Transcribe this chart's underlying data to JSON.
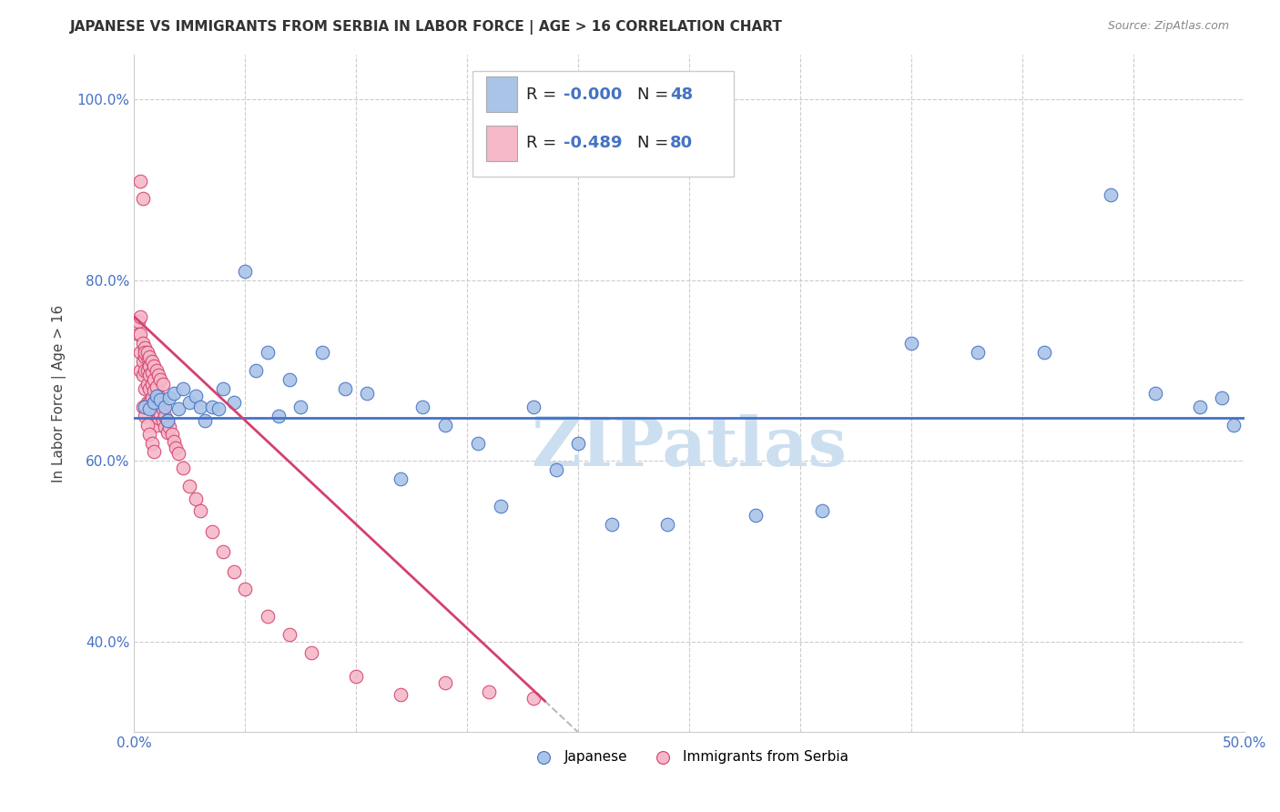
{
  "title": "JAPANESE VS IMMIGRANTS FROM SERBIA IN LABOR FORCE | AGE > 16 CORRELATION CHART",
  "source": "Source: ZipAtlas.com",
  "ylabel": "In Labor Force | Age > 16",
  "xlim": [
    0.0,
    0.5
  ],
  "ylim": [
    0.3,
    1.05
  ],
  "xticks": [
    0.0,
    0.05,
    0.1,
    0.15,
    0.2,
    0.25,
    0.3,
    0.35,
    0.4,
    0.45,
    0.5
  ],
  "xticklabels": [
    "0.0%",
    "",
    "",
    "",
    "",
    "",
    "",
    "",
    "",
    "",
    "50.0%"
  ],
  "yticks": [
    0.4,
    0.6,
    0.8,
    1.0
  ],
  "yticklabels": [
    "40.0%",
    "60.0%",
    "80.0%",
    "100.0%"
  ],
  "color_blue": "#aac4e8",
  "color_pink": "#f5b8c8",
  "color_blue_dark": "#4472c4",
  "color_pink_dark": "#d44070",
  "color_dashed": "#bbbbbb",
  "watermark": "ZIPatlas",
  "watermark_color": "#ccdff0",
  "jp_line_y": 0.648,
  "sr_line_intercept": 0.76,
  "sr_line_slope": -2.3,
  "sr_line_solid_end": 0.185,
  "japanese_x": [
    0.005,
    0.007,
    0.009,
    0.01,
    0.012,
    0.014,
    0.015,
    0.016,
    0.018,
    0.02,
    0.022,
    0.025,
    0.028,
    0.03,
    0.032,
    0.035,
    0.038,
    0.04,
    0.045,
    0.05,
    0.055,
    0.06,
    0.065,
    0.07,
    0.075,
    0.085,
    0.095,
    0.105,
    0.12,
    0.13,
    0.14,
    0.155,
    0.165,
    0.18,
    0.19,
    0.2,
    0.215,
    0.24,
    0.28,
    0.31,
    0.35,
    0.38,
    0.41,
    0.44,
    0.46,
    0.48,
    0.49,
    0.495
  ],
  "japanese_y": [
    0.66,
    0.658,
    0.665,
    0.672,
    0.668,
    0.66,
    0.645,
    0.67,
    0.675,
    0.658,
    0.68,
    0.665,
    0.672,
    0.66,
    0.645,
    0.66,
    0.658,
    0.68,
    0.665,
    0.81,
    0.7,
    0.72,
    0.65,
    0.69,
    0.66,
    0.72,
    0.68,
    0.675,
    0.58,
    0.66,
    0.64,
    0.62,
    0.55,
    0.66,
    0.59,
    0.62,
    0.53,
    0.53,
    0.54,
    0.545,
    0.73,
    0.72,
    0.72,
    0.895,
    0.675,
    0.66,
    0.67,
    0.64
  ],
  "serbia_x": [
    0.002,
    0.002,
    0.003,
    0.003,
    0.003,
    0.003,
    0.004,
    0.004,
    0.004,
    0.005,
    0.005,
    0.005,
    0.005,
    0.006,
    0.006,
    0.006,
    0.006,
    0.007,
    0.007,
    0.007,
    0.007,
    0.008,
    0.008,
    0.008,
    0.009,
    0.009,
    0.009,
    0.01,
    0.01,
    0.01,
    0.01,
    0.011,
    0.011,
    0.011,
    0.012,
    0.012,
    0.013,
    0.013,
    0.014,
    0.014,
    0.015,
    0.015,
    0.016,
    0.017,
    0.018,
    0.019,
    0.02,
    0.022,
    0.025,
    0.028,
    0.03,
    0.035,
    0.04,
    0.045,
    0.05,
    0.06,
    0.07,
    0.08,
    0.1,
    0.12,
    0.14,
    0.16,
    0.18,
    0.003,
    0.004,
    0.005,
    0.006,
    0.007,
    0.008,
    0.009,
    0.01,
    0.011,
    0.012,
    0.013,
    0.004,
    0.005,
    0.006,
    0.007,
    0.008,
    0.009
  ],
  "serbia_y": [
    0.755,
    0.74,
    0.76,
    0.74,
    0.72,
    0.7,
    0.73,
    0.71,
    0.695,
    0.725,
    0.715,
    0.7,
    0.68,
    0.715,
    0.7,
    0.685,
    0.665,
    0.705,
    0.695,
    0.68,
    0.665,
    0.698,
    0.685,
    0.67,
    0.69,
    0.678,
    0.665,
    0.682,
    0.668,
    0.655,
    0.64,
    0.672,
    0.66,
    0.648,
    0.665,
    0.652,
    0.658,
    0.645,
    0.65,
    0.638,
    0.645,
    0.632,
    0.638,
    0.63,
    0.622,
    0.615,
    0.608,
    0.592,
    0.572,
    0.558,
    0.545,
    0.522,
    0.5,
    0.478,
    0.458,
    0.428,
    0.408,
    0.388,
    0.362,
    0.342,
    0.355,
    0.345,
    0.338,
    0.91,
    0.89,
    0.72,
    0.72,
    0.715,
    0.71,
    0.705,
    0.7,
    0.695,
    0.69,
    0.685,
    0.66,
    0.65,
    0.64,
    0.63,
    0.62,
    0.61
  ]
}
